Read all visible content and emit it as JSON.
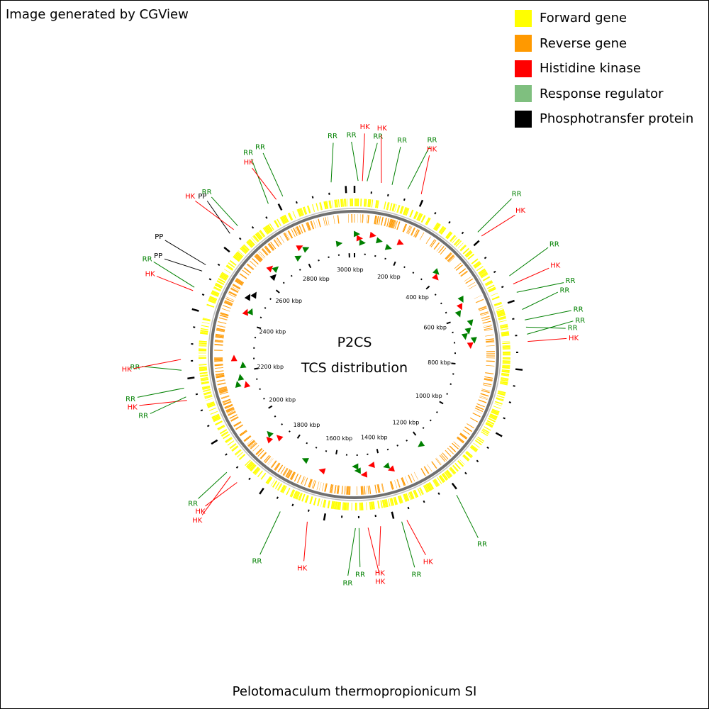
{
  "header": {
    "credit": "Image generated by CGView"
  },
  "legend": [
    {
      "label": "Forward gene",
      "color": "#ffff00"
    },
    {
      "label": "Reverse gene",
      "color": "#ff9900"
    },
    {
      "label": "Histidine kinase",
      "color": "#ff0000"
    },
    {
      "label": "Response regulator",
      "color": "#7fbf7f"
    },
    {
      "label": "Phosphotransfer protein",
      "color": "#000000"
    }
  ],
  "center": {
    "line1": "P2CS",
    "line2": "TCS distribution"
  },
  "caption": "Pelotomaculum thermopropionicum SI",
  "genome": {
    "length_kbp": 3025,
    "tick_labels": [
      "200 kbp",
      "400 kbp",
      "600 kbp",
      "800 kbp",
      "1000 kbp",
      "1200 kbp",
      "1400 kbp",
      "1600 kbp",
      "1800 kbp",
      "2000 kbp",
      "2200 kbp",
      "2400 kbp",
      "2600 kbp",
      "2800 kbp",
      "3000 kbp"
    ],
    "tick_values_kbp": [
      200,
      400,
      600,
      800,
      1000,
      1200,
      1400,
      1600,
      1800,
      2000,
      2200,
      2400,
      2600,
      2800,
      3000
    ],
    "ring_colors": {
      "backbone": "#808080",
      "arrow_rr": "#008000",
      "arrow_hk": "#ff0000",
      "arrow_pp": "#000000"
    }
  },
  "features": [
    {
      "type": "RR",
      "pos_kbp": 10,
      "strand": "+"
    },
    {
      "type": "HK",
      "pos_kbp": 22,
      "strand": "+"
    },
    {
      "type": "RR",
      "pos_kbp": 35,
      "strand": "+"
    },
    {
      "type": "HK",
      "pos_kbp": 75,
      "strand": "+"
    },
    {
      "type": "RR",
      "pos_kbp": 105,
      "strand": "+"
    },
    {
      "type": "RR",
      "pos_kbp": 150,
      "strand": "+"
    },
    {
      "type": "HK",
      "pos_kbp": 190,
      "strand": "+"
    },
    {
      "type": "RR",
      "pos_kbp": 380,
      "strand": "+"
    },
    {
      "type": "HK",
      "pos_kbp": 395,
      "strand": "+"
    },
    {
      "type": "RR",
      "pos_kbp": 530,
      "strand": "+"
    },
    {
      "type": "HK",
      "pos_kbp": 555,
      "strand": "+"
    },
    {
      "type": "RR",
      "pos_kbp": 580,
      "strand": "+"
    },
    {
      "type": "RR",
      "pos_kbp": 630,
      "strand": "+"
    },
    {
      "type": "RR",
      "pos_kbp": 660,
      "strand": "+"
    },
    {
      "type": "RR",
      "pos_kbp": 680,
      "strand": "+"
    },
    {
      "type": "RR",
      "pos_kbp": 700,
      "strand": "+"
    },
    {
      "type": "HK",
      "pos_kbp": 720,
      "strand": "+"
    },
    {
      "type": "RR",
      "pos_kbp": 1210,
      "strand": "+"
    },
    {
      "type": "HK",
      "pos_kbp": 1365,
      "strand": "+"
    },
    {
      "type": "RR",
      "pos_kbp": 1380,
      "strand": "+"
    },
    {
      "type": "HK",
      "pos_kbp": 1440,
      "strand": "+"
    },
    {
      "type": "HK",
      "pos_kbp": 1475,
      "strand": "+"
    },
    {
      "type": "RR",
      "pos_kbp": 1500,
      "strand": "+"
    },
    {
      "type": "RR",
      "pos_kbp": 1510,
      "strand": "+"
    },
    {
      "type": "HK",
      "pos_kbp": 1645,
      "strand": "+"
    },
    {
      "type": "RR",
      "pos_kbp": 1725,
      "strand": "+"
    },
    {
      "type": "HK",
      "pos_kbp": 1870,
      "strand": "+"
    },
    {
      "type": "HK",
      "pos_kbp": 1895,
      "strand": "+"
    },
    {
      "type": "RR",
      "pos_kbp": 1910,
      "strand": "+"
    },
    {
      "type": "HK",
      "pos_kbp": 2140,
      "strand": "+"
    },
    {
      "type": "RR",
      "pos_kbp": 2150,
      "strand": "+"
    },
    {
      "type": "RR",
      "pos_kbp": 2175,
      "strand": "+"
    },
    {
      "type": "RR",
      "pos_kbp": 2225,
      "strand": "+"
    },
    {
      "type": "HK",
      "pos_kbp": 2255,
      "strand": "+"
    },
    {
      "type": "HK",
      "pos_kbp": 2450,
      "strand": "+"
    },
    {
      "type": "RR",
      "pos_kbp": 2460,
      "strand": "+"
    },
    {
      "type": "PP",
      "pos_kbp": 2510,
      "strand": "+"
    },
    {
      "type": "PP",
      "pos_kbp": 2530,
      "strand": "+"
    },
    {
      "type": "PP",
      "pos_kbp": 2640,
      "strand": "+"
    },
    {
      "type": "HK",
      "pos_kbp": 2655,
      "strand": "+"
    },
    {
      "type": "RR",
      "pos_kbp": 2670,
      "strand": "+"
    },
    {
      "type": "RR",
      "pos_kbp": 2775,
      "strand": "+"
    },
    {
      "type": "HK",
      "pos_kbp": 2800,
      "strand": "+"
    },
    {
      "type": "RR",
      "pos_kbp": 2820,
      "strand": "+"
    },
    {
      "type": "RR",
      "pos_kbp": 2960,
      "strand": "+"
    }
  ]
}
